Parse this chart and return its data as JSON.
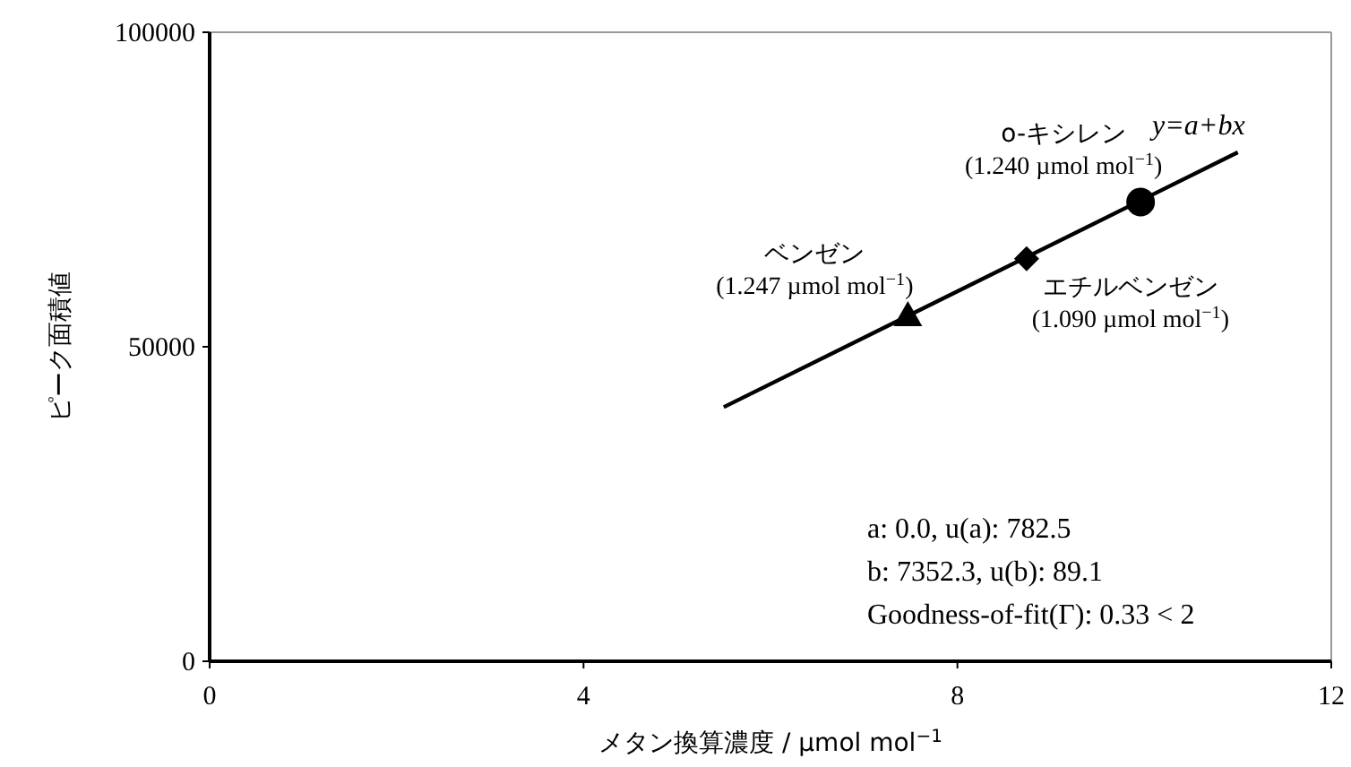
{
  "chart_data": {
    "type": "scatter",
    "xlabel": "メタン換算濃度 / µmol mol$^{−1}$",
    "ylabel": "ピーク面積値",
    "xlim": [
      0,
      12
    ],
    "xticks": [
      0,
      4,
      8,
      12
    ],
    "ylim": [
      0,
      100000
    ],
    "yticks": [
      0,
      50000,
      100000
    ],
    "grid": false,
    "series": [
      {
        "name": "ベンゼン",
        "color": "#000000",
        "marker": "triangle",
        "x": [
          7.47
        ],
        "values": [
          55000
        ]
      },
      {
        "name": "エチルベンゼン",
        "color": "#000000",
        "marker": "diamond",
        "x": [
          8.74
        ],
        "values": [
          64000
        ]
      },
      {
        "name": "o-キシレン",
        "color": "#000000",
        "marker": "circle",
        "x": [
          9.96
        ],
        "values": [
          73000
        ]
      },
      {
        "name": "y=a+bx",
        "type": "line",
        "color": "#000000",
        "marker": "none",
        "x": [
          5.5,
          11
        ],
        "values": [
          40400,
          80900
        ]
      }
    ],
    "annotations": [
      {
        "text": "(1.247 µmol mol$^{−1}$)",
        "x": 7.47,
        "y": 55000
      },
      {
        "text": "(1.090 µmol mol$^{−1}$)",
        "x": 8.74,
        "y": 64000
      },
      {
        "text": "(1.240 µmol mol$^{−1}$)",
        "x": 9.96,
        "y": 73000
      },
      "a: 0.0, u(a): 782.5",
      "b: 7352.3, u(b): 89.1",
      "Goodness-of-fit(Γ): 0.33 < 2"
    ]
  }
}
